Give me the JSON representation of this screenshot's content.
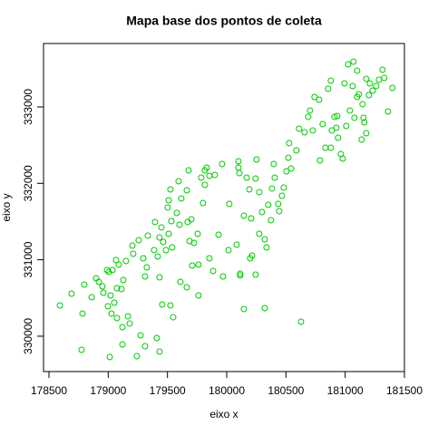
{
  "chart_data": {
    "type": "scatter",
    "title": "Mapa base dos pontos de coleta",
    "x_label": "eixo x",
    "y_label": "eixo y",
    "color": "#00c800",
    "xlim": [
      178454,
      181500
    ],
    "ylim": [
      329537,
      333830
    ],
    "xticks": [
      178500,
      179000,
      179500,
      180000,
      180500,
      181000,
      181500
    ],
    "yticks": [
      330000,
      331000,
      332000,
      333000
    ],
    "x": [
      178592,
      178691,
      178783,
      178798,
      178860,
      178898,
      178921,
      178951,
      178959,
      178990,
      179005,
      179036,
      178997,
      179020,
      179051,
      179074,
      179066,
      179089,
      179112,
      179127,
      179150,
      179028,
      179074,
      179120,
      179166,
      179181,
      178775,
      179013,
      179120,
      179242,
      179273,
      179311,
      179211,
      179204,
      179257,
      179296,
      179326,
      179334,
      179311,
      179387,
      179418,
      179433,
      179395,
      179449,
      179464,
      179487,
      179510,
      179533,
      179540,
      179502,
      179510,
      179525,
      179579,
      179594,
      179602,
      179617,
      179663,
      179678,
      179670,
      179701,
      179724,
      179755,
      179800,
      179816,
      179816,
      179831,
      179854,
      179900,
      179961,
      179785,
      179709,
      179762,
      179686,
      179433,
      179456,
      179525,
      179410,
      179433,
      179548,
      179609,
      179663,
      179762,
      179854,
      179885,
      179931,
      179969,
      180015,
      180022,
      180099,
      180099,
      180084,
      180107,
      180114,
      180145,
      180168,
      180191,
      180206,
      180252,
      180244,
      180275,
      180298,
      180321,
      180336,
      180374,
      180382,
      180397,
      180405,
      180351,
      180435,
      180443,
      180466,
      180481,
      180504,
      180520,
      180527,
      180543,
      180588,
      180611,
      180657,
      180688,
      180726,
      180703,
      180741,
      180780,
      180810,
      180833,
      180887,
      180910,
      180925,
      180940,
      180963,
      180979,
      181009,
      181040,
      181063,
      181078,
      181101,
      181116,
      181147,
      181178,
      181208,
      181231,
      181025,
      181070,
      181101,
      180856,
      180879,
      180787,
      180879,
      180933,
      180994,
      181155,
      181162,
      181139,
      181178,
      181200,
      181262,
      181285,
      181315,
      181330,
      181361,
      181399,
      180145,
      180321,
      180627,
      180275,
      180214,
      180198,
      180244,
      180114
    ],
    "values": [
      330403,
      330557,
      330296,
      330675,
      330509,
      330758,
      330711,
      330652,
      330569,
      330865,
      330841,
      330865,
      330391,
      330533,
      330438,
      330628,
      330996,
      330936,
      330616,
      330735,
      330984,
      330296,
      330237,
      330118,
      330260,
      330165,
      329822,
      329727,
      329893,
      329738,
      330011,
      329869,
      331079,
      331185,
      331257,
      331019,
      330901,
      331316,
      330782,
      331126,
      331043,
      331292,
      331494,
      331423,
      331233,
      331126,
      331340,
      331506,
      331162,
      331684,
      331778,
      331921,
      331612,
      332027,
      331458,
      331802,
      331909,
      332170,
      331494,
      331529,
      331221,
      331340,
      331743,
      331980,
      332170,
      332205,
      332099,
      332110,
      332253,
      332075,
      330924,
      330936,
      331245,
      330770,
      330415,
      330403,
      329976,
      329798,
      330248,
      330711,
      330640,
      330533,
      331019,
      330853,
      331328,
      330782,
      331126,
      331731,
      332288,
      332205,
      331197,
      332134,
      330818,
      331577,
      332075,
      331921,
      331541,
      332312,
      332063,
      331885,
      331624,
      331268,
      331162,
      331517,
      331933,
      332253,
      332075,
      331719,
      331731,
      331636,
      331838,
      331944,
      332158,
      332336,
      332526,
      332194,
      332431,
      332715,
      332668,
      332870,
      332692,
      332953,
      333130,
      333095,
      332775,
      332466,
      332692,
      332870,
      332727,
      332597,
      332383,
      332324,
      332751,
      332953,
      333273,
      332858,
      333130,
      333166,
      333036,
      333368,
      333308,
      333213,
      333557,
      333593,
      333474,
      333237,
      333344,
      332300,
      332466,
      332881,
      333308,
      332858,
      332798,
      332573,
      332656,
      333154,
      333273,
      333356,
      333486,
      333380,
      332941,
      333249,
      330355,
      330367,
      330189,
      331340,
      331055,
      331019,
      330806,
      330794
    ]
  }
}
